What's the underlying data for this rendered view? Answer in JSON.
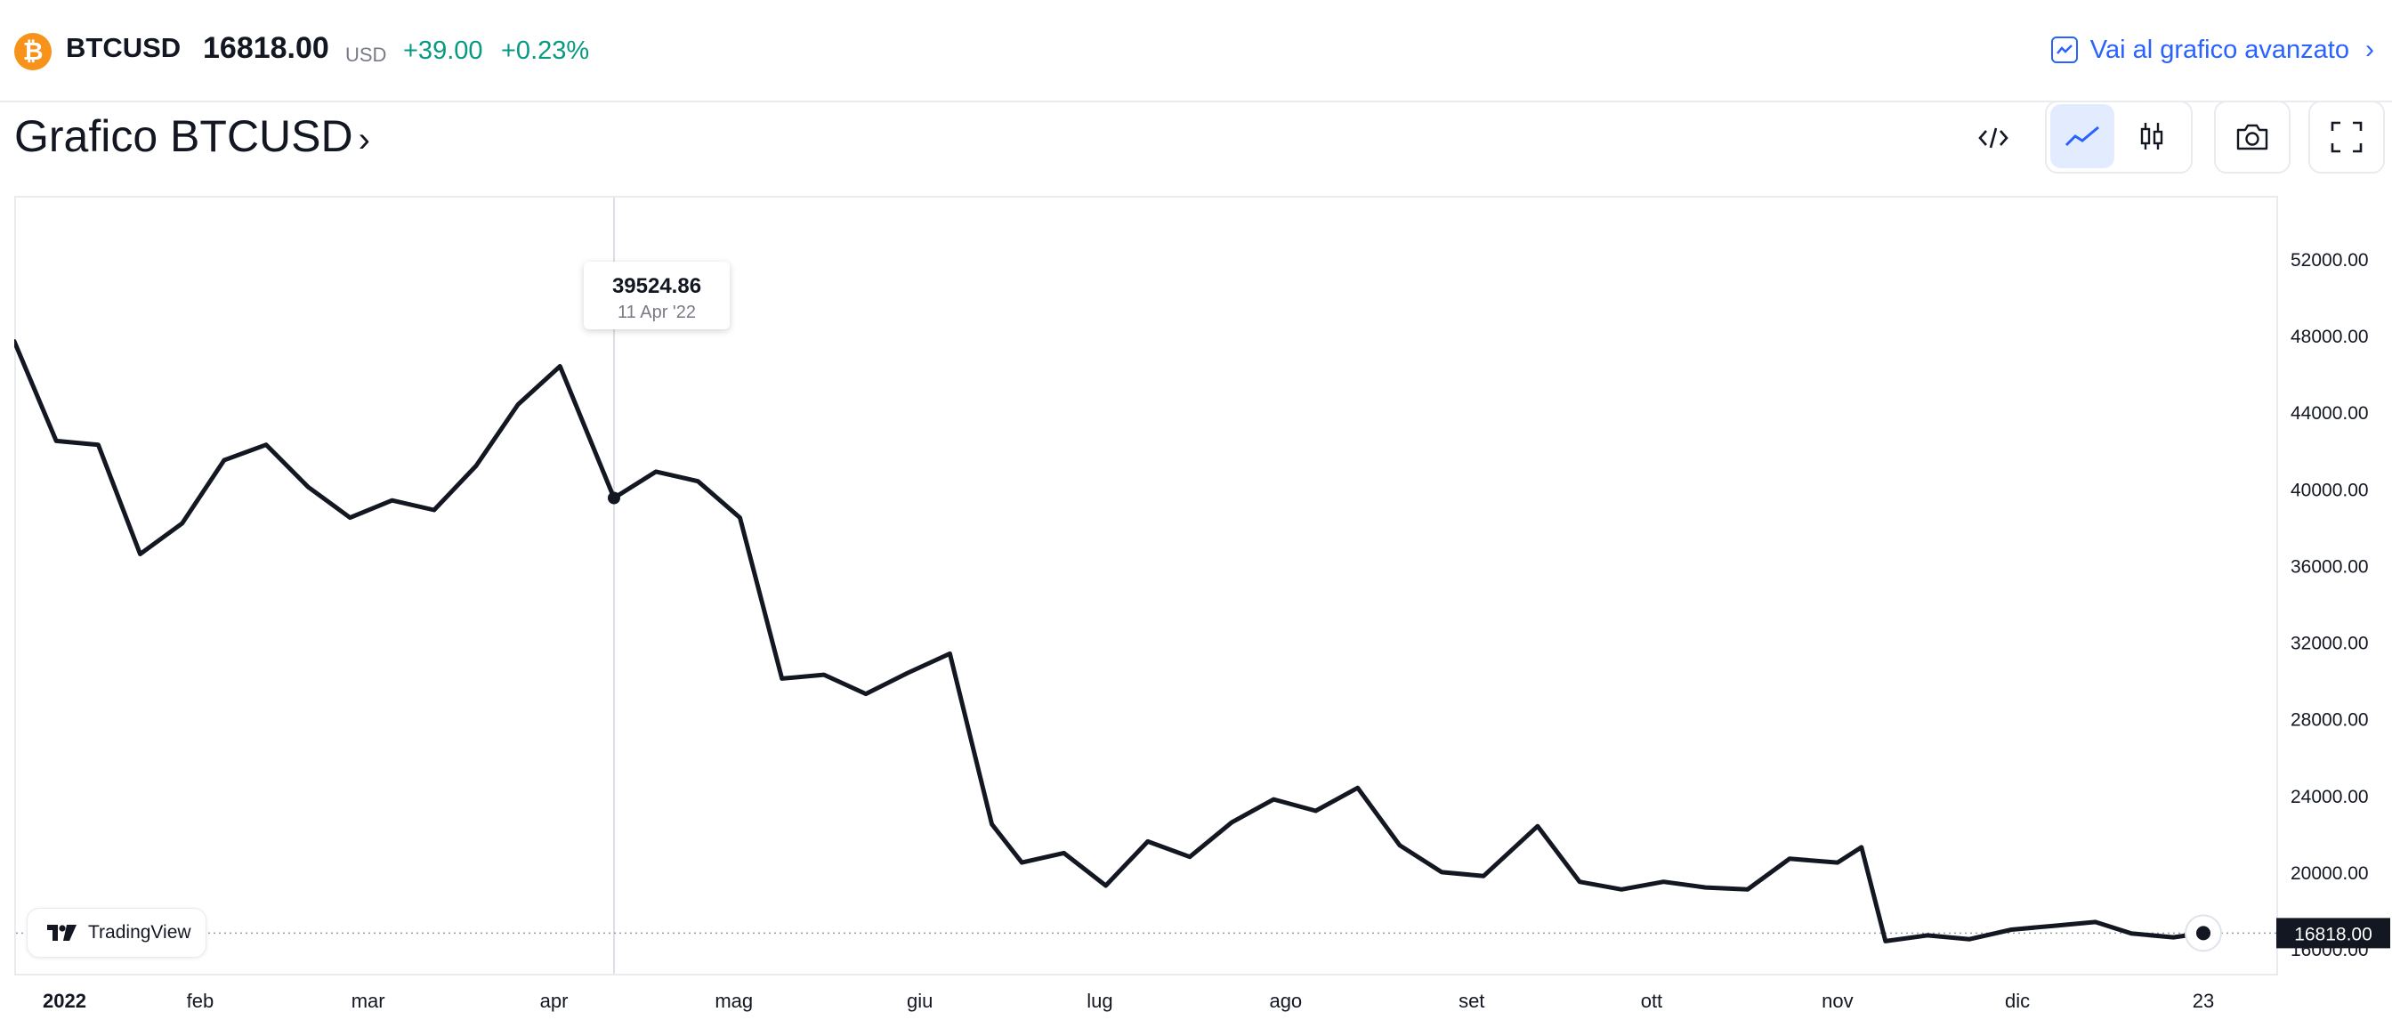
{
  "header": {
    "coin_glyph": "₿",
    "symbol": "BTCUSD",
    "price": "16818.00",
    "currency": "USD",
    "change": "+39.00",
    "change_pct": "+0.23%",
    "advanced_link": "Vai al grafico avanzato",
    "colors": {
      "up": "#089981",
      "link": "#2962ff",
      "coin": "#f7931a"
    }
  },
  "title": {
    "text": "Grafico BTCUSD",
    "arrow": "›"
  },
  "toolbar": {
    "buttons": [
      {
        "name": "embed-code-icon",
        "active": false
      },
      {
        "name": "line-chart-icon",
        "active": true
      },
      {
        "name": "candlestick-icon",
        "active": false
      },
      {
        "name": "camera-icon",
        "active": false
      },
      {
        "name": "fullscreen-icon",
        "active": false
      }
    ]
  },
  "tooltip": {
    "value": "39524.86",
    "date": "11 Apr '22"
  },
  "badge": {
    "label": "TradingView"
  },
  "chart_data": {
    "type": "line",
    "series": [
      {
        "color": "#131722",
        "x": [
          "2022-01-01",
          "2022-01-08",
          "2022-01-15",
          "2022-01-22",
          "2022-01-29",
          "2022-02-05",
          "2022-02-12",
          "2022-02-19",
          "2022-02-26",
          "2022-03-05",
          "2022-03-12",
          "2022-03-19",
          "2022-03-26",
          "2022-04-02",
          "2022-04-11",
          "2022-04-18",
          "2022-04-25",
          "2022-05-02",
          "2022-05-09",
          "2022-05-16",
          "2022-05-23",
          "2022-05-30",
          "2022-06-06",
          "2022-06-13",
          "2022-06-18",
          "2022-06-25",
          "2022-07-02",
          "2022-07-09",
          "2022-07-16",
          "2022-07-23",
          "2022-07-30",
          "2022-08-06",
          "2022-08-13",
          "2022-08-20",
          "2022-08-27",
          "2022-09-03",
          "2022-09-12",
          "2022-09-19",
          "2022-09-26",
          "2022-10-03",
          "2022-10-10",
          "2022-10-17",
          "2022-10-24",
          "2022-11-01",
          "2022-11-05",
          "2022-11-09",
          "2022-11-16",
          "2022-11-23",
          "2022-11-30",
          "2022-12-07",
          "2022-12-14",
          "2022-12-20",
          "2022-12-27",
          "2023-01-01"
        ],
        "values": [
          47700,
          42500,
          42300,
          36600,
          38200,
          41500,
          42300,
          40100,
          38500,
          39400,
          38900,
          41200,
          44400,
          46400,
          39524.86,
          40900,
          40400,
          38500,
          30100,
          30300,
          29300,
          30400,
          31400,
          22500,
          20500,
          21000,
          19300,
          21600,
          20800,
          22600,
          23800,
          23200,
          24400,
          21400,
          20000,
          19800,
          22400,
          19500,
          19100,
          19500,
          19200,
          19100,
          20700,
          20500,
          21300,
          16400,
          16700,
          16500,
          17000,
          17200,
          17400,
          16800,
          16600,
          16818
        ]
      }
    ],
    "y_ticks": [
      "52000.00",
      "48000.00",
      "44000.00",
      "40000.00",
      "36000.00",
      "32000.00",
      "28000.00",
      "24000.00",
      "20000.00",
      "16000.00"
    ],
    "ylim": [
      14700,
      55200
    ],
    "x_ticks": [
      {
        "label": "2022",
        "date": "2022-01-01"
      },
      {
        "label": "feb",
        "date": "2022-02-01"
      },
      {
        "label": "mar",
        "date": "2022-03-01"
      },
      {
        "label": "apr",
        "date": "2022-04-01"
      },
      {
        "label": "mag",
        "date": "2022-05-01"
      },
      {
        "label": "giu",
        "date": "2022-06-01"
      },
      {
        "label": "lug",
        "date": "2022-07-01"
      },
      {
        "label": "ago",
        "date": "2022-08-01"
      },
      {
        "label": "set",
        "date": "2022-09-01"
      },
      {
        "label": "ott",
        "date": "2022-10-01"
      },
      {
        "label": "nov",
        "date": "2022-11-01"
      },
      {
        "label": "dic",
        "date": "2022-12-01"
      },
      {
        "label": "23",
        "date": "2023-01-01"
      }
    ],
    "last_price_label": "16818.00",
    "crosshair_date": "2022-04-11"
  }
}
